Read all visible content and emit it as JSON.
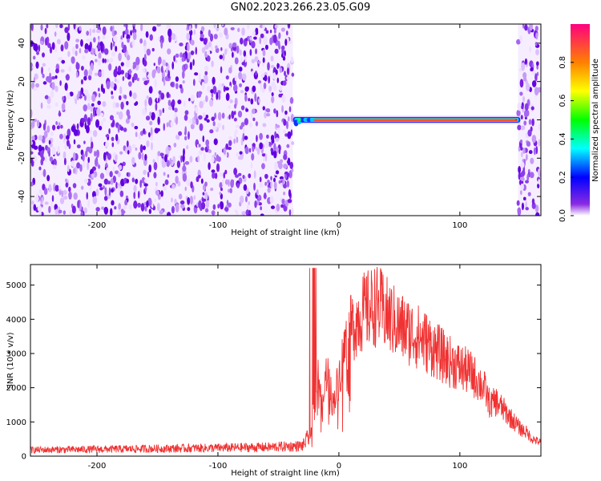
{
  "title": "GN02.2023.266.23.05.G09",
  "chart_data": [
    {
      "type": "heatmap",
      "xlabel": "Height of straight line (km)",
      "ylabel": "Frequency (Hz)",
      "xlim": [
        -255,
        167
      ],
      "ylim": [
        -50,
        50
      ],
      "x_ticks": [
        -200,
        -100,
        0,
        100
      ],
      "y_ticks": [
        -40,
        -20,
        0,
        20,
        40
      ],
      "colorbar": {
        "label": "Normalized spectral amplitude",
        "range": [
          0,
          1
        ],
        "ticks": [
          "0.0",
          "0.2",
          "0.4",
          "0.6",
          "0.8"
        ]
      },
      "regions": [
        {
          "name": "noise",
          "x_range": [
            -255,
            -38
          ],
          "f_range": [
            -50,
            50
          ]
        },
        {
          "name": "signal",
          "x_range": [
            -38,
            150
          ],
          "frequency_hz": 0
        },
        {
          "name": "noise",
          "x_range": [
            148,
            167
          ],
          "f_range": [
            -50,
            50
          ]
        }
      ]
    },
    {
      "type": "line",
      "xlabel": "Height of straight line (km)",
      "ylabel": "SNR (10 * v/v)",
      "xlim": [
        -255,
        167
      ],
      "ylim": [
        0,
        5600
      ],
      "x_ticks": [
        -200,
        -100,
        0,
        100
      ],
      "y_ticks": [
        0,
        1000,
        2000,
        3000,
        4000,
        5000
      ],
      "color": "#f03232",
      "x": [
        -255,
        -200,
        -150,
        -100,
        -60,
        -30,
        -24,
        -20,
        -17,
        -14,
        -10,
        -5,
        0,
        5,
        10,
        15,
        20,
        25,
        30,
        35,
        40,
        50,
        60,
        70,
        80,
        90,
        100,
        110,
        120,
        125,
        130,
        140,
        145,
        150,
        155,
        160,
        167
      ],
      "y": [
        180,
        200,
        220,
        240,
        260,
        300,
        600,
        1500,
        2800,
        1200,
        2600,
        1500,
        2300,
        3200,
        3700,
        4000,
        4200,
        4300,
        4400,
        4300,
        4100,
        3800,
        3600,
        3400,
        3100,
        2800,
        2600,
        2400,
        2000,
        1500,
        1600,
        1200,
        1000,
        800,
        700,
        500,
        400
      ]
    }
  ]
}
